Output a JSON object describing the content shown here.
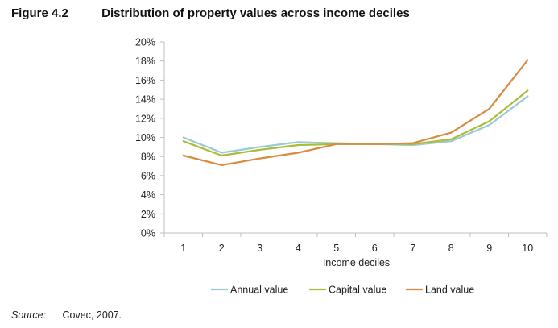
{
  "figure": {
    "number": "Figure 4.2",
    "title": "Distribution of property values across income deciles"
  },
  "source": {
    "label": "Source:",
    "text": "Covec, 2007."
  },
  "chart_data": {
    "type": "line",
    "title": "Distribution of property values across income deciles",
    "xlabel": "Income deciles",
    "ylabel": "",
    "x": [
      1,
      2,
      3,
      4,
      5,
      6,
      7,
      8,
      9,
      10
    ],
    "ylim": [
      0,
      20
    ],
    "yticks": [
      0,
      2,
      4,
      6,
      8,
      10,
      12,
      14,
      16,
      18,
      20
    ],
    "ytick_labels": [
      "0%",
      "2%",
      "4%",
      "6%",
      "8%",
      "10%",
      "12%",
      "14%",
      "16%",
      "18%",
      "20%"
    ],
    "grid": false,
    "legend_position": "bottom",
    "series": [
      {
        "name": "Annual value",
        "color": "#9cc9d4",
        "values": [
          10.0,
          8.4,
          9.0,
          9.5,
          9.4,
          9.3,
          9.2,
          9.6,
          11.3,
          14.3
        ]
      },
      {
        "name": "Capital value",
        "color": "#a9bd38",
        "values": [
          9.6,
          8.1,
          8.7,
          9.2,
          9.3,
          9.3,
          9.3,
          9.8,
          11.7,
          14.9
        ]
      },
      {
        "name": "Land value",
        "color": "#d98b3f",
        "values": [
          8.1,
          7.1,
          7.8,
          8.4,
          9.3,
          9.3,
          9.4,
          10.5,
          13.0,
          18.1
        ]
      }
    ]
  }
}
